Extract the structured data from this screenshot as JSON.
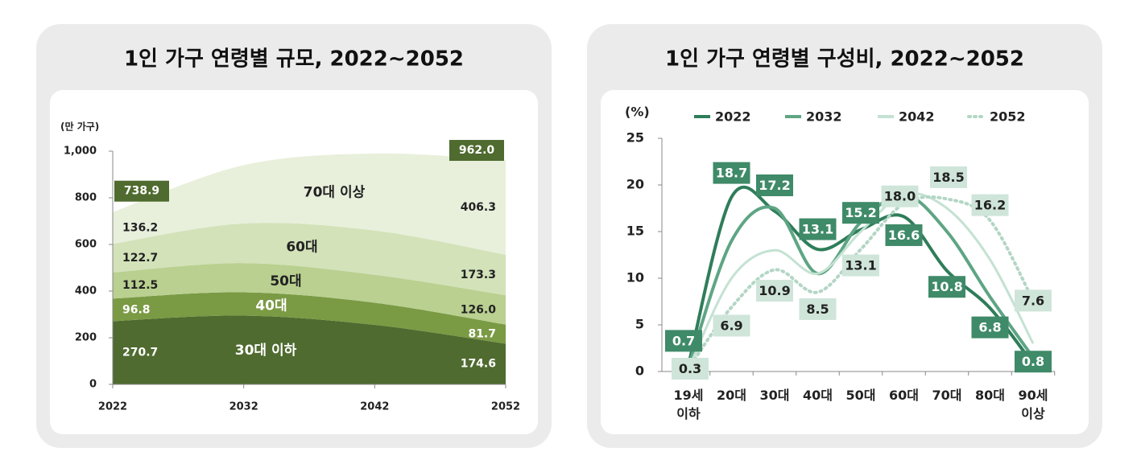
{
  "chart_data": [
    {
      "type": "area",
      "stacked": true,
      "title": "1인 가구 연령별 규모, 2022~2052",
      "y_label": "(만 가구)",
      "x": [
        2022,
        2032,
        2042,
        2052
      ],
      "xlim": [
        2022,
        2052
      ],
      "xticks": [
        2022,
        2032,
        2042,
        2052
      ],
      "ylim": [
        0,
        1000
      ],
      "yticks": [
        0,
        200,
        400,
        600,
        800,
        {
          "value": 1000,
          "label": "1,000"
        }
      ],
      "series": [
        {
          "name": "30대 이하",
          "color": "#4f6b2f",
          "values": [
            270.7,
            295,
            255,
            174.6
          ],
          "value_labels": [
            "270.7",
            null,
            null,
            "174.6"
          ]
        },
        {
          "name": "40대",
          "color": "#7a9a44",
          "values": [
            96.8,
            100,
            95,
            81.7
          ],
          "value_labels": [
            "96.8",
            null,
            null,
            "81.7"
          ]
        },
        {
          "name": "50대",
          "color": "#b9d090",
          "values": [
            112.5,
            125,
            120,
            126.0
          ],
          "value_labels": [
            "112.5",
            null,
            null,
            "126.0"
          ]
        },
        {
          "name": "60대",
          "color": "#d3e2b9",
          "values": [
            122.7,
            170,
            190,
            173.3
          ],
          "value_labels": [
            "122.7",
            null,
            null,
            "173.3"
          ]
        },
        {
          "name": "70대 이상",
          "color": "#e8f0dc",
          "values": [
            136.2,
            250,
            330,
            406.3
          ],
          "value_labels": [
            "136.2",
            null,
            null,
            "406.3"
          ]
        }
      ],
      "totals": [
        738.9,
        null,
        null,
        962.0
      ],
      "total_labels": [
        "738.9",
        null,
        null,
        "962.0"
      ],
      "total_color": "#4f6b2f"
    },
    {
      "type": "line",
      "title": "1인 가구 연령별 구성비, 2022~2052",
      "y_label": "(%)",
      "categories": [
        "19세\n이하",
        "20대",
        "30대",
        "40대",
        "50대",
        "60대",
        "70대",
        "80대",
        "90세\n이상"
      ],
      "ylim": [
        0,
        25
      ],
      "yticks": [
        0,
        5,
        10,
        15,
        20,
        25
      ],
      "series": [
        {
          "name": "2022",
          "color": "#2f7d5a",
          "style": "solid",
          "show_labels": true,
          "values": [
            0.7,
            18.7,
            17.2,
            13.1,
            15.2,
            16.6,
            10.8,
            6.8,
            0.8
          ]
        },
        {
          "name": "2032",
          "color": "#5ea584",
          "style": "solid",
          "values": [
            0.5,
            14,
            17.5,
            10.5,
            16,
            19,
            15,
            8,
            1.5
          ]
        },
        {
          "name": "2042",
          "color": "#c4e2d3",
          "style": "solid",
          "values": [
            0.3,
            10,
            13,
            10.5,
            15,
            19,
            17.5,
            12,
            3
          ]
        },
        {
          "name": "2052",
          "color": "#b3d6c5",
          "style": "dotted",
          "show_labels": true,
          "values": [
            0.3,
            6.9,
            10.9,
            8.5,
            13.1,
            18.0,
            18.5,
            16.2,
            7.6
          ],
          "value_labels": [
            "0.3",
            "6.9",
            "10.9",
            "8.5",
            "13.1",
            "18.0",
            "18.5",
            "16.2",
            "7.6"
          ]
        }
      ]
    }
  ]
}
